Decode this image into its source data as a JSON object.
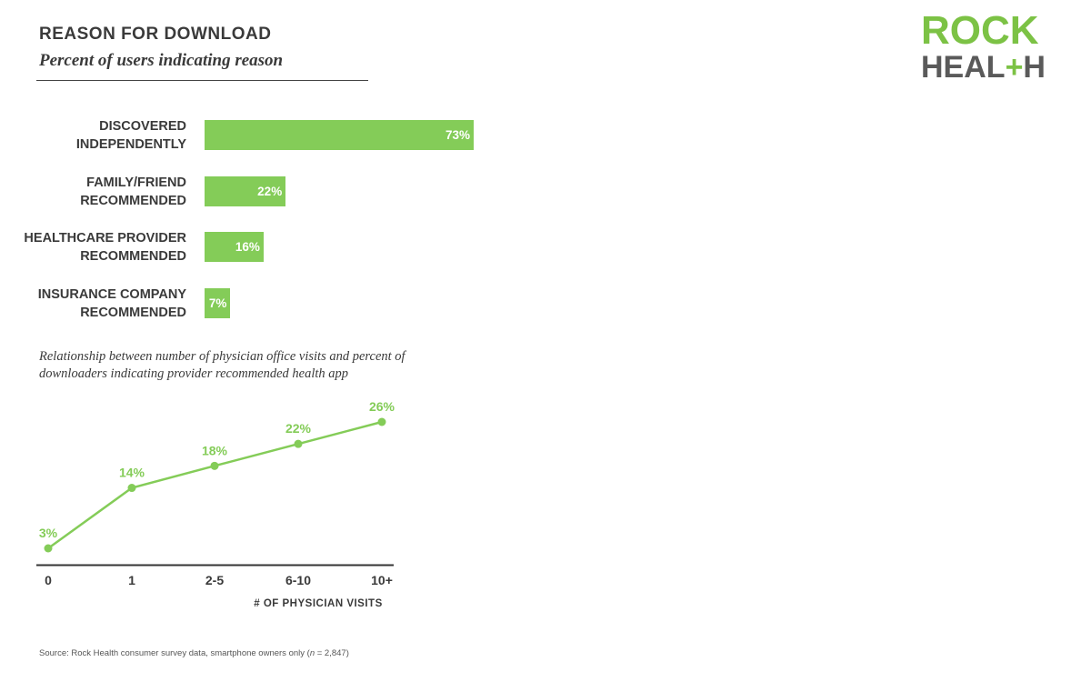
{
  "header": {
    "title": "REASON FOR DOWNLOAD",
    "subtitle": "Percent of users indicating reason"
  },
  "logo": {
    "line1": "ROCK",
    "line2_a": "HEAL",
    "line2_plus": "+",
    "line2_b": "H"
  },
  "colors": {
    "accent_green": "#84cc58",
    "logo_green": "#7cc245",
    "text": "#3a3a3a"
  },
  "chart_data": [
    {
      "type": "bar",
      "orientation": "horizontal",
      "categories": [
        [
          "DISCOVERED",
          "INDEPENDENTLY"
        ],
        [
          "FAMILY/FRIEND",
          "RECOMMENDED"
        ],
        [
          "HEALTHCARE PROVIDER",
          "RECOMMENDED"
        ],
        [
          "INSURANCE COMPANY",
          "RECOMMENDED"
        ]
      ],
      "values": [
        73,
        22,
        16,
        7
      ],
      "value_labels": [
        "73%",
        "22%",
        "16%",
        "7%"
      ],
      "xlim": [
        0,
        73
      ]
    },
    {
      "type": "line",
      "title": "Relationship between number of physician office visits and percent of downloaders indicating provider recommended health app",
      "categories": [
        "0",
        "1",
        "2-5",
        "6-10",
        "10+"
      ],
      "values": [
        3,
        14,
        18,
        22,
        26
      ],
      "value_labels": [
        "3%",
        "14%",
        "18%",
        "22%",
        "26%"
      ],
      "xlabel": "# OF PHYSICIAN VISITS",
      "ylim": [
        3,
        26
      ]
    }
  ],
  "source": {
    "prefix": "Source: Rock Health consumer survey data, smartphone owners only (",
    "n_italic": "n",
    "suffix": " = 2,847)"
  }
}
